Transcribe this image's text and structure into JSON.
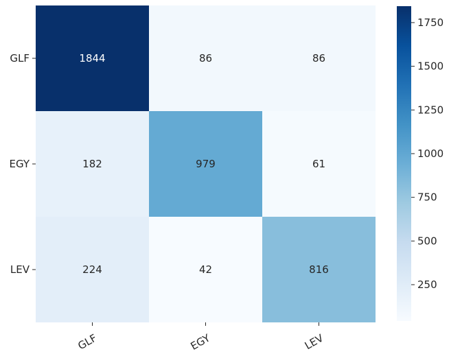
{
  "chart_data": {
    "type": "heatmap",
    "title": "",
    "xlabel": "",
    "ylabel": "",
    "x_categories": [
      "GLF",
      "EGY",
      "LEV"
    ],
    "y_categories": [
      "GLF",
      "EGY",
      "LEV"
    ],
    "values": [
      [
        1844,
        86,
        86
      ],
      [
        182,
        979,
        61
      ],
      [
        224,
        42,
        816
      ]
    ],
    "colormap": "Blues",
    "colorbar": {
      "range": [
        42,
        1844
      ],
      "ticks": [
        250,
        500,
        750,
        1000,
        1250,
        1500,
        1750
      ],
      "tick_labels": [
        "250",
        "500",
        "750",
        "1000",
        "1250",
        "1500",
        "1750"
      ]
    },
    "annotations_shown": true,
    "grid": false,
    "legend": "colorbar-right"
  }
}
